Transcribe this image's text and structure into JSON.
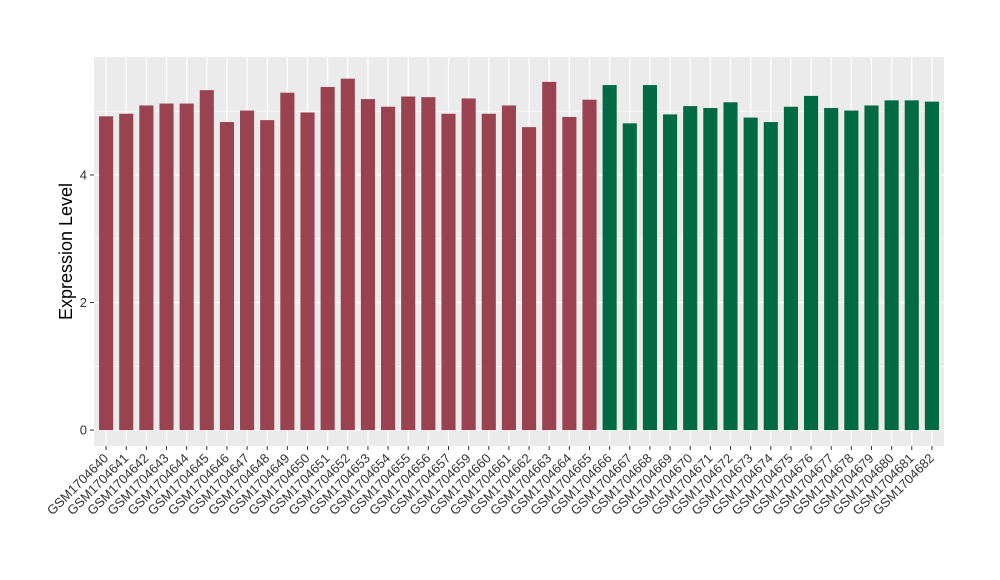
{
  "chart_data": {
    "type": "bar",
    "title": "",
    "xlabel": "",
    "ylabel": "Expression Level",
    "ylim": [
      -0.25,
      5.85
    ],
    "yticks": [
      0,
      2,
      4
    ],
    "grid": true,
    "legend": "none",
    "colors": {
      "group1": "#9b4250",
      "group2": "#006a44",
      "panel": "#ebebeb",
      "gridline": "#ffffff"
    },
    "categories": [
      "GSM1704640",
      "GSM1704641",
      "GSM1704642",
      "GSM1704643",
      "GSM1704644",
      "GSM1704645",
      "GSM1704646",
      "GSM1704647",
      "GSM1704648",
      "GSM1704649",
      "GSM1704650",
      "GSM1704651",
      "GSM1704652",
      "GSM1704653",
      "GSM1704654",
      "GSM1704655",
      "GSM1704656",
      "GSM1704657",
      "GSM1704659",
      "GSM1704660",
      "GSM1704661",
      "GSM1704662",
      "GSM1704663",
      "GSM1704664",
      "GSM1704665",
      "GSM1704666",
      "GSM1704667",
      "GSM1704668",
      "GSM1704669",
      "GSM1704670",
      "GSM1704671",
      "GSM1704672",
      "GSM1704673",
      "GSM1704674",
      "GSM1704675",
      "GSM1704676",
      "GSM1704677",
      "GSM1704678",
      "GSM1704679",
      "GSM1704680",
      "GSM1704681",
      "GSM1704682"
    ],
    "values": [
      4.92,
      4.96,
      5.09,
      5.12,
      5.12,
      5.33,
      4.83,
      5.01,
      4.86,
      5.29,
      4.98,
      5.38,
      5.51,
      5.19,
      5.07,
      5.23,
      5.22,
      4.96,
      5.2,
      4.96,
      5.09,
      4.75,
      5.46,
      4.91,
      5.18,
      5.41,
      4.81,
      5.41,
      4.95,
      5.08,
      5.05,
      5.14,
      4.9,
      4.83,
      5.07,
      5.24,
      5.05,
      5.01,
      5.09,
      5.17,
      5.17,
      5.15
    ],
    "groups": [
      1,
      1,
      1,
      1,
      1,
      1,
      1,
      1,
      1,
      1,
      1,
      1,
      1,
      1,
      1,
      1,
      1,
      1,
      1,
      1,
      1,
      1,
      1,
      1,
      1,
      2,
      2,
      2,
      2,
      2,
      2,
      2,
      2,
      2,
      2,
      2,
      2,
      2,
      2,
      2,
      2,
      2
    ]
  }
}
